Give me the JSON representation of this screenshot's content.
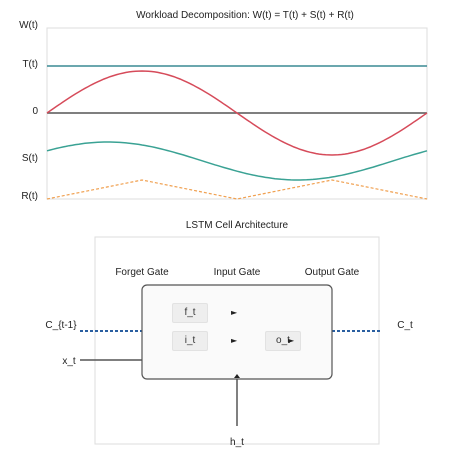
{
  "top_chart": {
    "title": "Workload Decomposition: W(t) = T(t) + S(t) + R(t)",
    "y_labels": {
      "w": "W(t)",
      "t": "T(t)",
      "zero": "0",
      "s": "S(t)",
      "r": "R(t)"
    },
    "colors": {
      "trend": "#3a8a93",
      "seasonal_red": "#d64b5a",
      "seasonal_teal": "#3aa294",
      "residual": "#f0a050",
      "baseline": "#555555"
    }
  },
  "lstm": {
    "title": "LSTM Cell Architecture",
    "gate_labels": {
      "forget": "Forget Gate",
      "input": "Input Gate",
      "output": "Output Gate"
    },
    "chips": {
      "f": "f_t",
      "i": "i_t",
      "o": "o_t"
    },
    "io_labels": {
      "c_prev": "C_{t-1}",
      "c_next": "C_t",
      "x": "x_t",
      "h": "h_t"
    },
    "colors": {
      "cell_state": "#2a5fa0",
      "box_border": "#555555",
      "box_fill": "#fafafa",
      "chip_fill": "#eeeeee"
    }
  }
}
